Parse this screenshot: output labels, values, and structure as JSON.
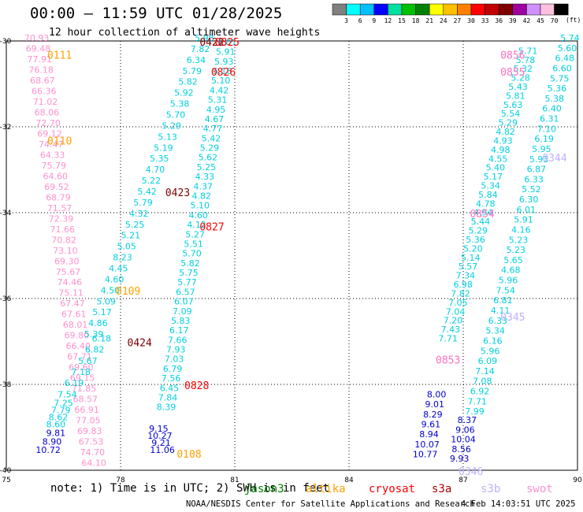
{
  "title": "00:00 – 11:59 UTC 01/28/2025",
  "subtitle": "12 hour collection of altimeter wave heights",
  "note": "note:  1) Time is in UTC; 2) SWH is in feet",
  "credit": "NOAA/NESDIS Center for Satellite Applications and Research",
  "generated": "4 Feb 14:03:51 UTC 2025",
  "colorbar": {
    "labels": [
      "3",
      "6",
      "9",
      "12",
      "15",
      "18",
      "21",
      "24",
      "27",
      "30",
      "33",
      "36",
      "39",
      "42",
      "45",
      "70"
    ],
    "unit": "(ft)",
    "colors": [
      "#808080",
      "#00ffff",
      "#00c0ff",
      "#0000ff",
      "#00e0a0",
      "#00c000",
      "#008000",
      "#ffff00",
      "#ffc000",
      "#ff8000",
      "#ff0000",
      "#c00000",
      "#800000",
      "#a000a0",
      "#d090ff",
      "#ffc0e0",
      "#000000"
    ]
  },
  "satellites": [
    {
      "name": "jason3",
      "color": "#008000"
    },
    {
      "name": "altika",
      "color": "#ffa000"
    },
    {
      "name": "cryosat",
      "color": "#ff0000"
    },
    {
      "name": "s3a",
      "color": "#b00000"
    },
    {
      "name": "s3b",
      "color": "#c0b0ff"
    },
    {
      "name": "swot",
      "color": "#ff90d0"
    }
  ],
  "chart_data": {
    "type": "scatter",
    "xlabel": "",
    "ylabel": "",
    "xlim": [
      75,
      90
    ],
    "ylim": [
      -40,
      -30
    ],
    "x_ticks": [
      "75",
      "78",
      "81",
      "84",
      "87",
      "90"
    ],
    "y_ticks": [
      "-30",
      "-32",
      "-34",
      "-36",
      "-38",
      "-40"
    ],
    "grid": true,
    "tracks": [
      {
        "label": "0111",
        "color": "#ffa000",
        "lon": 76.4,
        "lat": -30.3
      },
      {
        "label": "0110",
        "color": "#ffa000",
        "lon": 76.4,
        "lat": -32.3
      },
      {
        "label": "0109",
        "color": "#ffa000",
        "lon": 78.2,
        "lat": -35.8
      },
      {
        "label": "0108",
        "color": "#ffa000",
        "lon": 79.8,
        "lat": -39.6
      },
      {
        "label": "0422",
        "color": "#800000",
        "lon": 80.4,
        "lat": -30.0
      },
      {
        "label": "0423",
        "color": "#800000",
        "lon": 79.5,
        "lat": -33.5
      },
      {
        "label": "0424",
        "color": "#800000",
        "lon": 78.5,
        "lat": -37.0
      },
      {
        "label": "0825",
        "color": "#ff0000",
        "lon": 80.8,
        "lat": -30.0
      },
      {
        "label": "0826",
        "color": "#ff0000",
        "lon": 80.7,
        "lat": -30.7
      },
      {
        "label": "0827",
        "color": "#ff0000",
        "lon": 80.4,
        "lat": -34.3
      },
      {
        "label": "0828",
        "color": "#ff0000",
        "lon": 80.0,
        "lat": -38.0
      },
      {
        "label": "0856",
        "color": "#ff70c0",
        "lon": 88.3,
        "lat": -30.3
      },
      {
        "label": "0855",
        "color": "#ff70c0",
        "lon": 88.3,
        "lat": -30.7
      },
      {
        "label": "0854",
        "color": "#ff70c0",
        "lon": 87.5,
        "lat": -34.0
      },
      {
        "label": "0853",
        "color": "#ff70c0",
        "lon": 86.6,
        "lat": -37.4
      },
      {
        "label": "0344",
        "color": "#c0b0ff",
        "lon": 89.4,
        "lat": -32.7
      },
      {
        "label": "0345",
        "color": "#c0b0ff",
        "lon": 88.3,
        "lat": -36.4
      },
      {
        "label": "0346",
        "color": "#c0b0ff",
        "lon": 87.2,
        "lat": -40.0
      }
    ],
    "series": [
      {
        "color": "#ff90d0",
        "lon_start": 75.8,
        "lon_end": 77.3,
        "lat_start": -30.0,
        "lat_end": -39.9,
        "values": [
          "70.93",
          "69.48",
          "77.91",
          "76.18",
          "68.67",
          "66.36",
          "71.02",
          "68.06",
          "72.70",
          "69.12",
          "74.47",
          "64.33",
          "75.79",
          "64.60",
          "69.52",
          "68.79",
          "71.57",
          "72.39",
          "71.66",
          "70.82",
          "73.10",
          "69.30",
          "75.67",
          "74.46",
          "75.11",
          "67.47",
          "67.61",
          "68.01",
          "69.80",
          "66.40",
          "67.71",
          "69.60",
          "69.15",
          "71.85",
          "68.57",
          "66.91",
          "77.05",
          "69.83",
          "67.53",
          "74.70",
          "64.10"
        ]
      },
      {
        "color": "#00d0e0",
        "lon_start": 80.2,
        "lon_end": 77.3,
        "lat_start": -30.0,
        "lat_end": -36.9,
        "values": [
          "5.98",
          "7.82",
          "6.34",
          "5.79",
          "5.82",
          "5.92",
          "5.38",
          "5.70",
          "5.29",
          "5.13",
          "5.19",
          "5.35",
          "4.70",
          "5.22",
          "5.42",
          "5.79",
          "4.32",
          "5.25",
          "5.21",
          "5.05",
          "8.23",
          "4.45",
          "4.60",
          "4.50",
          "5.09",
          "5.17",
          "4.86",
          "5.39"
        ]
      },
      {
        "color": "#00d0e0",
        "lon_start": 80.8,
        "lon_end": 79.2,
        "lat_start": -30.1,
        "lat_end": -38.6,
        "values": [
          "6.01",
          "5.91",
          "5.93",
          "5.18",
          "5.10",
          "4.42",
          "5.31",
          "4.95",
          "4.67",
          "4.77",
          "5.42",
          "5.29",
          "5.62",
          "5.25",
          "4.33",
          "4.37",
          "4.82",
          "5.10",
          "4.60",
          "4.12",
          "5.27",
          "5.51",
          "5.70",
          "5.82",
          "5.75",
          "5.77",
          "6.57",
          "6.07",
          "7.09",
          "5.83",
          "6.17",
          "7.66",
          "7.93",
          "7.03",
          "6.79",
          "7.56",
          "6.45",
          "7.84",
          "8.39"
        ]
      },
      {
        "color": "#00d0e0",
        "lon_start": 77.5,
        "lon_end": 76.6,
        "lat_start": -37.0,
        "lat_end": -38.3,
        "values": [
          "6.18",
          "6.82",
          "5.67",
          "7.18",
          "6.19",
          "7.54"
        ]
      },
      {
        "color": "#00d0e0",
        "lon_start": 76.5,
        "lon_end": 76.3,
        "lat_start": -38.5,
        "lat_end": -39.0,
        "values": [
          "7.25",
          "7.79",
          "8.62",
          "8.60"
        ]
      },
      {
        "color": "#0000d0",
        "lon_start": 76.3,
        "lon_end": 76.1,
        "lat_start": -39.2,
        "lat_end": -39.6,
        "values": [
          "9.81",
          "8.90",
          "10.72"
        ]
      },
      {
        "color": "#0000d0",
        "lon_start": 79.0,
        "lon_end": 79.1,
        "lat_start": -39.1,
        "lat_end": -39.6,
        "values": [
          "9.15",
          "10.27",
          "9.21",
          "11.06"
        ]
      },
      {
        "color": "#00d0e0",
        "lon_start": 88.7,
        "lon_end": 86.6,
        "lat_start": -30.3,
        "lat_end": -37.0,
        "values": [
          "5.71",
          "5.78",
          "5.32",
          "5.28",
          "5.43",
          "5.81",
          "5.63",
          "5.54",
          "5.29",
          "4.82",
          "4.93",
          "4.98",
          "4.55",
          "5.40",
          "5.17",
          "5.34",
          "5.84",
          "4.78",
          "4.94",
          "5.44",
          "5.29",
          "5.36",
          "5.20",
          "5.14",
          "5.57",
          "7.34",
          "6.98",
          "7.82",
          "7.05",
          "7.04",
          "7.20",
          "7.43",
          "7.71"
        ]
      },
      {
        "color": "#0000d0",
        "lon_start": 86.3,
        "lon_end": 86.0,
        "lat_start": -38.3,
        "lat_end": -39.7,
        "values": [
          "8.00",
          "9.01",
          "8.29",
          "9.61",
          "8.94",
          "10.07",
          "10.77"
        ]
      },
      {
        "color": "#00d0e0",
        "lon_start": 89.8,
        "lon_end": 87.3,
        "lat_start": -30.0,
        "lat_end": -38.7,
        "values": [
          "5.74",
          "5.60",
          "6.48",
          "6.60",
          "5.75",
          "5.36",
          "5.38",
          "6.40",
          "6.31",
          "7.10",
          "6.19",
          "5.95",
          "5.93",
          "6.87",
          "6.33",
          "5.52",
          "6.30",
          "6.01",
          "5.91",
          "4.16",
          "5.23",
          "5.23",
          "5.65",
          "4.68",
          "5.96",
          "7.54",
          "6.81",
          "4.11",
          "6.33",
          "5.34",
          "6.16",
          "5.96",
          "6.09",
          "7.14",
          "7.08",
          "6.92",
          "7.71",
          "7.99"
        ]
      },
      {
        "color": "#0000d0",
        "lon_start": 87.1,
        "lon_end": 86.9,
        "lat_start": -38.9,
        "lat_end": -39.8,
        "values": [
          "8.37",
          "9.06",
          "10.04",
          "8.56",
          "9.93"
        ]
      }
    ]
  }
}
